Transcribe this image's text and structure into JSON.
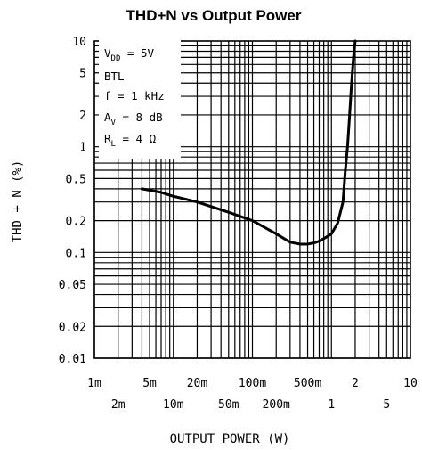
{
  "chart_data": {
    "type": "line",
    "title": "THD+N vs Output Power",
    "xlabel": "OUTPUT POWER (W)",
    "ylabel": "THD + N (%)",
    "x_scale": "log",
    "y_scale": "log",
    "xlim": [
      0.001,
      10
    ],
    "ylim": [
      0.01,
      10
    ],
    "grid": true,
    "x_tick_labels": {
      "upper": [
        {
          "value": 0.001,
          "label": "1m"
        },
        {
          "value": 0.005,
          "label": "5m"
        },
        {
          "value": 0.02,
          "label": "20m"
        },
        {
          "value": 0.1,
          "label": "100m"
        },
        {
          "value": 0.5,
          "label": "500m"
        },
        {
          "value": 2,
          "label": "2"
        },
        {
          "value": 10,
          "label": "10"
        }
      ],
      "lower": [
        {
          "value": 0.002,
          "label": "2m"
        },
        {
          "value": 0.01,
          "label": "10m"
        },
        {
          "value": 0.05,
          "label": "50m"
        },
        {
          "value": 0.2,
          "label": "200m"
        },
        {
          "value": 1,
          "label": "1"
        },
        {
          "value": 5,
          "label": "5"
        }
      ]
    },
    "y_tick_labels": [
      {
        "value": 10,
        "label": "10"
      },
      {
        "value": 5,
        "label": "5"
      },
      {
        "value": 2,
        "label": "2"
      },
      {
        "value": 1,
        "label": "1"
      },
      {
        "value": 0.5,
        "label": "0.5"
      },
      {
        "value": 0.2,
        "label": "0.2"
      },
      {
        "value": 0.1,
        "label": "0.1"
      },
      {
        "value": 0.05,
        "label": "0.05"
      },
      {
        "value": 0.02,
        "label": "0.02"
      },
      {
        "value": 0.01,
        "label": "0.01"
      }
    ],
    "conditions": {
      "vdd": {
        "main": "V",
        "sub": "DD",
        "rest": " = 5V"
      },
      "mode": "BTL",
      "freq": "f = 1 kHz",
      "gain": {
        "main": "A",
        "sub": "V",
        "rest": " = 8 dB"
      },
      "load": {
        "main": "R",
        "sub": "L",
        "rest": " = 4 Ω"
      }
    },
    "series": [
      {
        "x": [
          0.004,
          0.007,
          0.01,
          0.02,
          0.05,
          0.1,
          0.2,
          0.3,
          0.4,
          0.5,
          0.6,
          0.7,
          0.8,
          1.0,
          1.2,
          1.4,
          1.5,
          1.6,
          1.7,
          1.8,
          1.9,
          2.0
        ],
        "y": [
          0.4,
          0.37,
          0.34,
          0.3,
          0.24,
          0.2,
          0.15,
          0.125,
          0.12,
          0.12,
          0.123,
          0.128,
          0.135,
          0.15,
          0.19,
          0.3,
          0.6,
          1.0,
          2.0,
          4.0,
          7.0,
          10.0
        ]
      }
    ]
  }
}
